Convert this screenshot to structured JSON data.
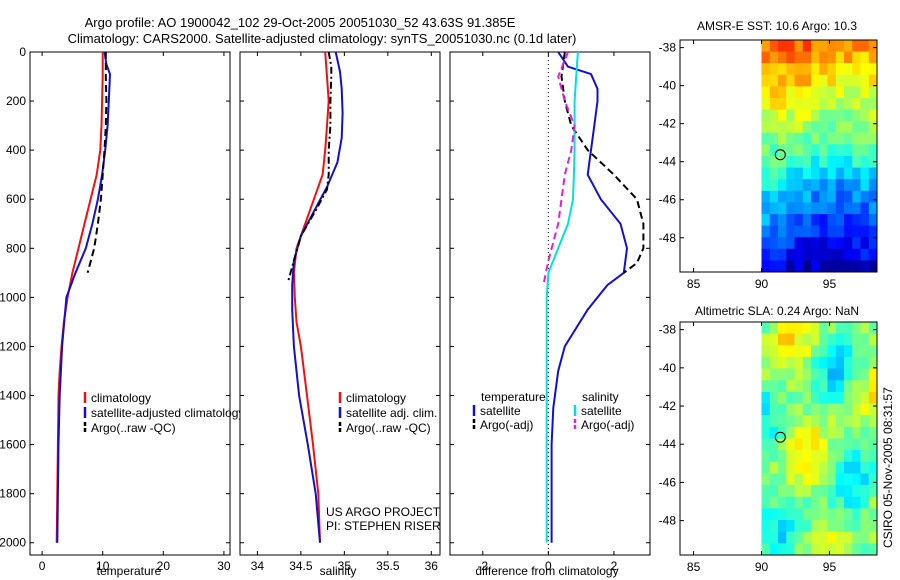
{
  "header": {
    "line1": "Argo profile: AO 1900042_102 29-Oct-2005 20051030_52 43.63S 91.385E",
    "line2": "Climatology: CARS2000. Satellite-adjusted climatology: synTS_20051030.nc (0.1d later)"
  },
  "side_text": "CSIRO 05-Nov-2005 08:31:57",
  "colors": {
    "red": "#ee1111",
    "blue": "#1111cc",
    "black": "#000000",
    "cyan": "#00e0e0",
    "magenta": "#dd22dd"
  },
  "chart_data": [
    {
      "id": "temperature",
      "type": "line",
      "xlabel": "temperature",
      "xlim": [
        -2,
        31
      ],
      "ylim": [
        0,
        2050
      ],
      "xticks": [
        "0",
        "10",
        "20",
        "30"
      ],
      "yticks": [
        "0",
        "200",
        "400",
        "600",
        "800",
        "1000",
        "1200",
        "1400",
        "1600",
        "1800",
        "2000"
      ],
      "legend": [
        "climatology",
        "satellite-adjusted climatology",
        "Argo(..raw -QC)"
      ],
      "series": [
        {
          "name": "climatology",
          "color": "red",
          "style": "solid",
          "x": [
            10,
            10,
            9.9,
            9.8,
            9.6,
            9.0,
            8.0,
            7.0,
            6.0,
            5.0,
            4.2,
            3.6,
            3.2,
            2.9,
            2.7,
            2.6,
            2.5,
            2.4
          ],
          "y": [
            0,
            100,
            200,
            300,
            400,
            500,
            600,
            700,
            800,
            900,
            1000,
            1100,
            1200,
            1300,
            1400,
            1600,
            1800,
            2000
          ]
        },
        {
          "name": "satellite-adjusted climatology",
          "color": "blue",
          "style": "solid",
          "x": [
            10.3,
            10.6,
            11.2,
            11.0,
            10.8,
            10.4,
            9.9,
            9.2,
            8.3,
            7.2,
            5.5,
            4.0,
            3.3,
            2.9,
            2.7,
            2.6,
            2.5
          ],
          "y": [
            0,
            50,
            90,
            200,
            300,
            400,
            500,
            600,
            700,
            800,
            900,
            1000,
            1200,
            1400,
            1600,
            1800,
            2000
          ]
        },
        {
          "name": "Argo(..raw -QC)",
          "color": "black",
          "style": "dashed",
          "x": [
            10.5,
            10.5,
            10.6,
            10.5,
            10.3,
            10.0,
            9.7,
            9.2,
            8.6,
            7.5
          ],
          "y": [
            0,
            100,
            200,
            300,
            400,
            500,
            600,
            700,
            800,
            900
          ]
        }
      ]
    },
    {
      "id": "salinity",
      "type": "line",
      "xlabel": "salinity",
      "xlim": [
        33.8,
        36.1
      ],
      "ylim": [
        0,
        2050
      ],
      "xticks": [
        "34",
        "34.5",
        "35",
        "35.5",
        "36"
      ],
      "legend": [
        "climatology",
        "satellite adj. clim.",
        "Argo(..raw -QC)"
      ],
      "annotation": [
        "US ARGO PROJECT",
        "PI: STEPHEN RISER"
      ],
      "series": [
        {
          "name": "climatology",
          "color": "red",
          "style": "solid",
          "x": [
            34.78,
            34.8,
            34.82,
            34.8,
            34.78,
            34.75,
            34.65,
            34.55,
            34.45,
            34.42,
            34.43,
            34.45,
            34.5,
            34.57,
            34.64,
            34.7,
            34.72
          ],
          "y": [
            0,
            100,
            200,
            300,
            400,
            500,
            600,
            700,
            800,
            900,
            1000,
            1100,
            1200,
            1400,
            1600,
            1800,
            2000
          ]
        },
        {
          "name": "satellite adj. clim.",
          "color": "blue",
          "style": "solid",
          "x": [
            34.9,
            34.95,
            34.97,
            34.98,
            34.97,
            34.92,
            34.8,
            34.65,
            34.5,
            34.42,
            34.4,
            34.4,
            34.42,
            34.48,
            34.58,
            34.67,
            34.72
          ],
          "y": [
            0,
            80,
            150,
            250,
            350,
            450,
            550,
            650,
            750,
            850,
            950,
            1050,
            1200,
            1400,
            1600,
            1800,
            2000
          ]
        },
        {
          "name": "Argo(..raw -QC)",
          "color": "black",
          "style": "dashdot",
          "x": [
            34.82,
            34.85,
            34.85,
            34.84,
            34.84,
            34.82,
            34.82,
            34.8,
            34.68,
            34.5,
            34.35
          ],
          "y": [
            0,
            60,
            100,
            200,
            300,
            400,
            500,
            560,
            640,
            750,
            940
          ]
        }
      ]
    },
    {
      "id": "difference",
      "type": "line",
      "xlabel": "difference from climatology",
      "xlim": [
        -3,
        3.1
      ],
      "ylim": [
        0,
        2050
      ],
      "xticks": [
        "-2",
        "0",
        "2"
      ],
      "legend_left": [
        "temperature",
        "satellite",
        "Argo(-adj)"
      ],
      "legend_right": [
        "salinity",
        "satellite",
        "Argo(-adj)"
      ],
      "series": [
        {
          "name": "temperature satellite",
          "color": "blue",
          "style": "solid",
          "x": [
            0.3,
            0.6,
            1.3,
            1.5,
            1.5,
            1.4,
            1.3,
            1.2,
            1.6,
            2.2,
            2.4,
            2.3,
            1.8,
            1.2,
            0.5,
            0.3,
            0.15,
            0.1,
            0.1
          ],
          "y": [
            0,
            60,
            90,
            150,
            200,
            300,
            400,
            500,
            600,
            700,
            800,
            900,
            950,
            1050,
            1200,
            1300,
            1450,
            1600,
            2000
          ]
        },
        {
          "name": "temperature Argo(-adj)",
          "color": "black",
          "style": "dashed",
          "x": [
            0.5,
            0.4,
            0.5,
            0.7,
            1.2,
            2.0,
            2.7,
            2.9,
            2.9,
            2.7,
            2.3
          ],
          "y": [
            0,
            100,
            200,
            300,
            400,
            500,
            600,
            700,
            800,
            860,
            900
          ]
        },
        {
          "name": "salinity satellite",
          "color": "cyan",
          "style": "solid",
          "x": [
            0.9,
            0.85,
            0.8,
            0.8,
            0.8,
            0.78,
            0.75,
            0.6,
            0.3,
            0.0,
            -0.05,
            -0.05,
            -0.05,
            -0.05
          ],
          "y": [
            0,
            100,
            200,
            300,
            400,
            500,
            600,
            700,
            800,
            900,
            1000,
            1200,
            1600,
            2000
          ]
        },
        {
          "name": "salinity Argo(-adj)",
          "color": "magenta",
          "style": "dashed",
          "x": [
            0.6,
            0.3,
            0.5,
            0.8,
            0.7,
            0.5,
            0.3,
            0.0,
            -0.15
          ],
          "y": [
            0,
            100,
            200,
            300,
            400,
            500,
            700,
            850,
            950
          ]
        }
      ]
    },
    {
      "id": "sst_map",
      "type": "heatmap",
      "title": "AMSR-E SST: 10.6  Argo: 10.3",
      "xlim": [
        84,
        98.5
      ],
      "ylim": [
        -49.8,
        -37.6
      ],
      "xticks": [
        "85",
        "90",
        "95"
      ],
      "yticks": [
        "-38",
        "-40",
        "-42",
        "-44",
        "-46",
        "-48"
      ],
      "data_x_range": [
        90,
        98.5
      ],
      "marker": {
        "lon": 91.385,
        "lat": -43.63
      }
    },
    {
      "id": "sla_map",
      "type": "heatmap",
      "title": "Altimetric SLA: 0.24  Argo: NaN",
      "xlim": [
        84,
        98.5
      ],
      "ylim": [
        -49.8,
        -37.6
      ],
      "xticks": [
        "85",
        "90",
        "95"
      ],
      "yticks": [
        "-38",
        "-40",
        "-42",
        "-44",
        "-46",
        "-48"
      ],
      "data_x_range": [
        90,
        98.5
      ],
      "marker": {
        "lon": 91.385,
        "lat": -43.63
      }
    }
  ]
}
